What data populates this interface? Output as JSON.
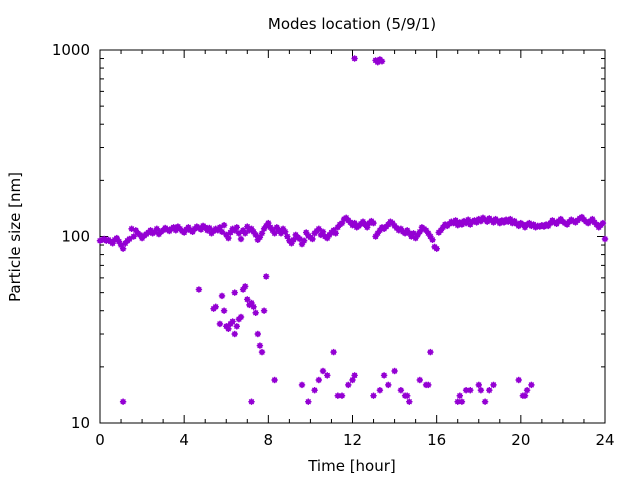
{
  "chart_data": {
    "type": "scatter",
    "title": "Modes location (5/9/1)",
    "xlabel": "Time [hour]",
    "ylabel": "Particle size [nm]",
    "xlim": [
      0,
      24
    ],
    "ylim": [
      10,
      1000
    ],
    "yscale": "log",
    "x_ticks": [
      0,
      4,
      8,
      12,
      16,
      20,
      24
    ],
    "x_tick_labels": [
      "0",
      "4",
      "8",
      "12",
      "16",
      "20",
      "24"
    ],
    "y_ticks": [
      10,
      100,
      1000
    ],
    "y_tick_labels": [
      "10",
      "100",
      "1000"
    ],
    "grid": false,
    "marker_color": "#9400d3",
    "series": [
      {
        "points": [
          [
            0.0,
            95
          ],
          [
            0.1,
            96
          ],
          [
            0.2,
            97
          ],
          [
            0.3,
            95
          ],
          [
            0.4,
            96
          ],
          [
            0.5,
            94
          ],
          [
            0.6,
            92
          ],
          [
            0.7,
            96
          ],
          [
            0.8,
            98
          ],
          [
            0.9,
            94
          ],
          [
            1.0,
            90
          ],
          [
            1.1,
            86
          ],
          [
            1.2,
            92
          ],
          [
            1.3,
            95
          ],
          [
            1.4,
            97
          ],
          [
            1.5,
            110
          ],
          [
            1.6,
            100
          ],
          [
            1.7,
            108
          ],
          [
            1.8,
            104
          ],
          [
            1.9,
            102
          ],
          [
            2.0,
            98
          ],
          [
            2.1,
            101
          ],
          [
            2.2,
            103
          ],
          [
            2.3,
            105
          ],
          [
            2.4,
            108
          ],
          [
            2.5,
            104
          ],
          [
            2.6,
            106
          ],
          [
            2.7,
            110
          ],
          [
            2.8,
            103
          ],
          [
            2.9,
            106
          ],
          [
            3.0,
            108
          ],
          [
            3.1,
            111
          ],
          [
            3.2,
            109
          ],
          [
            3.3,
            107
          ],
          [
            3.4,
            110
          ],
          [
            3.5,
            112
          ],
          [
            3.6,
            108
          ],
          [
            3.7,
            113
          ],
          [
            3.8,
            110
          ],
          [
            3.9,
            107
          ],
          [
            4.0,
            105
          ],
          [
            4.1,
            109
          ],
          [
            4.2,
            112
          ],
          [
            4.3,
            108
          ],
          [
            4.4,
            106
          ],
          [
            4.5,
            110
          ],
          [
            4.6,
            113
          ],
          [
            4.7,
            111
          ],
          [
            4.8,
            109
          ],
          [
            4.9,
            114
          ],
          [
            5.0,
            112
          ],
          [
            5.1,
            108
          ],
          [
            5.2,
            111
          ],
          [
            5.3,
            104
          ],
          [
            5.4,
            107
          ],
          [
            5.5,
            110
          ],
          [
            5.6,
            108
          ],
          [
            5.7,
            112
          ],
          [
            5.8,
            106
          ],
          [
            5.9,
            115
          ],
          [
            6.0,
            102
          ],
          [
            6.1,
            98
          ],
          [
            6.2,
            105
          ],
          [
            6.3,
            110
          ],
          [
            6.4,
            108
          ],
          [
            6.5,
            112
          ],
          [
            6.6,
            104
          ],
          [
            6.7,
            97
          ],
          [
            6.8,
            108
          ],
          [
            6.9,
            104
          ],
          [
            7.0,
            113
          ],
          [
            7.1,
            108
          ],
          [
            7.2,
            110
          ],
          [
            7.3,
            106
          ],
          [
            7.4,
            102
          ],
          [
            7.5,
            96
          ],
          [
            7.6,
            99
          ],
          [
            7.7,
            104
          ],
          [
            7.8,
            110
          ],
          [
            7.9,
            114
          ],
          [
            8.0,
            118
          ],
          [
            8.1,
            112
          ],
          [
            8.2,
            108
          ],
          [
            8.3,
            104
          ],
          [
            8.4,
            112
          ],
          [
            8.5,
            108
          ],
          [
            8.6,
            104
          ],
          [
            8.7,
            110
          ],
          [
            8.8,
            106
          ],
          [
            8.9,
            100
          ],
          [
            9.0,
            95
          ],
          [
            9.1,
            92
          ],
          [
            9.2,
            96
          ],
          [
            9.3,
            102
          ],
          [
            9.4,
            99
          ],
          [
            9.5,
            97
          ],
          [
            9.6,
            91
          ],
          [
            9.7,
            95
          ],
          [
            9.8,
            105
          ],
          [
            9.9,
            101
          ],
          [
            10.0,
            99
          ],
          [
            10.1,
            97
          ],
          [
            10.2,
            104
          ],
          [
            10.3,
            107
          ],
          [
            10.4,
            110
          ],
          [
            10.5,
            102
          ],
          [
            10.6,
            106
          ],
          [
            10.7,
            100
          ],
          [
            10.8,
            98
          ],
          [
            10.9,
            102
          ],
          [
            11.0,
            105
          ],
          [
            11.1,
            108
          ],
          [
            11.2,
            104
          ],
          [
            11.3,
            112
          ],
          [
            11.4,
            116
          ],
          [
            11.5,
            118
          ],
          [
            11.6,
            124
          ],
          [
            11.7,
            126
          ],
          [
            11.8,
            122
          ],
          [
            11.9,
            119
          ],
          [
            12.0,
            115
          ],
          [
            12.1,
            118
          ],
          [
            12.2,
            112
          ],
          [
            12.3,
            114
          ],
          [
            12.4,
            117
          ],
          [
            12.5,
            120
          ],
          [
            12.6,
            116
          ],
          [
            12.7,
            112
          ],
          [
            12.8,
            118
          ],
          [
            12.9,
            121
          ],
          [
            13.0,
            118
          ],
          [
            13.1,
            100
          ],
          [
            13.2,
            104
          ],
          [
            13.3,
            108
          ],
          [
            13.4,
            112
          ],
          [
            13.5,
            110
          ],
          [
            13.6,
            113
          ],
          [
            13.7,
            116
          ],
          [
            13.8,
            120
          ],
          [
            13.9,
            118
          ],
          [
            14.0,
            114
          ],
          [
            14.1,
            111
          ],
          [
            14.2,
            108
          ],
          [
            14.3,
            110
          ],
          [
            14.4,
            106
          ],
          [
            14.5,
            104
          ],
          [
            14.6,
            108
          ],
          [
            14.7,
            104
          ],
          [
            14.8,
            100
          ],
          [
            14.9,
            104
          ],
          [
            15.0,
            98
          ],
          [
            15.1,
            102
          ],
          [
            15.2,
            106
          ],
          [
            15.3,
            112
          ],
          [
            15.4,
            110
          ],
          [
            15.5,
            108
          ],
          [
            15.6,
            104
          ],
          [
            15.7,
            100
          ],
          [
            15.8,
            96
          ],
          [
            15.9,
            88
          ],
          [
            16.0,
            86
          ],
          [
            16.1,
            105
          ],
          [
            16.2,
            108
          ],
          [
            16.3,
            112
          ],
          [
            16.4,
            116
          ],
          [
            16.5,
            114
          ],
          [
            16.6,
            117
          ],
          [
            16.7,
            120
          ],
          [
            16.8,
            118
          ],
          [
            16.9,
            122
          ],
          [
            17.0,
            115
          ],
          [
            17.1,
            119
          ],
          [
            17.2,
            116
          ],
          [
            17.3,
            121
          ],
          [
            17.4,
            118
          ],
          [
            17.5,
            123
          ],
          [
            17.6,
            116
          ],
          [
            17.7,
            120
          ],
          [
            17.8,
            122
          ],
          [
            17.9,
            119
          ],
          [
            18.0,
            124
          ],
          [
            18.1,
            121
          ],
          [
            18.2,
            126
          ],
          [
            18.3,
            123
          ],
          [
            18.4,
            120
          ],
          [
            18.5,
            125
          ],
          [
            18.6,
            122
          ],
          [
            18.7,
            119
          ],
          [
            18.8,
            124
          ],
          [
            18.9,
            121
          ],
          [
            19.0,
            118
          ],
          [
            19.1,
            122
          ],
          [
            19.2,
            119
          ],
          [
            19.3,
            123
          ],
          [
            19.4,
            120
          ],
          [
            19.5,
            124
          ],
          [
            19.6,
            118
          ],
          [
            19.7,
            121
          ],
          [
            19.8,
            117
          ],
          [
            19.9,
            114
          ],
          [
            20.0,
            118
          ],
          [
            20.1,
            116
          ],
          [
            20.2,
            112
          ],
          [
            20.3,
            116
          ],
          [
            20.4,
            118
          ],
          [
            20.5,
            114
          ],
          [
            20.6,
            116
          ],
          [
            20.7,
            112
          ],
          [
            20.8,
            114
          ],
          [
            20.9,
            113
          ],
          [
            21.0,
            115
          ],
          [
            21.1,
            113
          ],
          [
            21.2,
            116
          ],
          [
            21.3,
            114
          ],
          [
            21.4,
            118
          ],
          [
            21.5,
            122
          ],
          [
            21.6,
            119
          ],
          [
            21.7,
            117
          ],
          [
            21.8,
            121
          ],
          [
            21.9,
            124
          ],
          [
            22.0,
            120
          ],
          [
            22.1,
            118
          ],
          [
            22.2,
            116
          ],
          [
            22.3,
            120
          ],
          [
            22.4,
            123
          ],
          [
            22.5,
            121
          ],
          [
            22.6,
            119
          ],
          [
            22.7,
            122
          ],
          [
            22.8,
            125
          ],
          [
            22.9,
            127
          ],
          [
            23.0,
            123
          ],
          [
            23.1,
            120
          ],
          [
            23.2,
            118
          ],
          [
            23.3,
            121
          ],
          [
            23.4,
            124
          ],
          [
            23.5,
            119
          ],
          [
            23.6,
            116
          ],
          [
            23.7,
            112
          ],
          [
            23.8,
            115
          ],
          [
            23.9,
            118
          ],
          [
            24.0,
            97
          ],
          [
            12.1,
            900
          ],
          [
            13.1,
            880
          ],
          [
            13.2,
            860
          ],
          [
            13.3,
            890
          ],
          [
            13.4,
            870
          ],
          [
            4.7,
            52
          ],
          [
            5.4,
            41
          ],
          [
            5.5,
            42
          ],
          [
            5.7,
            34
          ],
          [
            5.8,
            48
          ],
          [
            5.9,
            40
          ],
          [
            6.0,
            33
          ],
          [
            6.1,
            32
          ],
          [
            6.2,
            34
          ],
          [
            6.3,
            35
          ],
          [
            6.4,
            30
          ],
          [
            6.5,
            33
          ],
          [
            6.6,
            36
          ],
          [
            6.7,
            37
          ],
          [
            6.8,
            52
          ],
          [
            6.9,
            54
          ],
          [
            6.4,
            50
          ],
          [
            7.0,
            46
          ],
          [
            7.1,
            43
          ],
          [
            7.2,
            44
          ],
          [
            7.3,
            42
          ],
          [
            7.4,
            39
          ],
          [
            7.5,
            30
          ],
          [
            7.6,
            26
          ],
          [
            7.7,
            24
          ],
          [
            7.8,
            40
          ],
          [
            7.9,
            61
          ],
          [
            7.2,
            13
          ],
          [
            1.1,
            13
          ],
          [
            8.3,
            17
          ],
          [
            9.6,
            16
          ],
          [
            9.9,
            13
          ],
          [
            10.2,
            15
          ],
          [
            10.4,
            17
          ],
          [
            10.6,
            19
          ],
          [
            10.8,
            18
          ],
          [
            11.1,
            24
          ],
          [
            11.3,
            14
          ],
          [
            11.5,
            14
          ],
          [
            11.8,
            16
          ],
          [
            12.0,
            17
          ],
          [
            12.1,
            18
          ],
          [
            13.0,
            14
          ],
          [
            13.3,
            15
          ],
          [
            13.5,
            18
          ],
          [
            13.7,
            16
          ],
          [
            14.0,
            19
          ],
          [
            14.3,
            15
          ],
          [
            14.5,
            14
          ],
          [
            14.6,
            14
          ],
          [
            14.7,
            13
          ],
          [
            15.2,
            17
          ],
          [
            15.5,
            16
          ],
          [
            15.6,
            16
          ],
          [
            15.7,
            24
          ],
          [
            17.0,
            13
          ],
          [
            17.1,
            14
          ],
          [
            17.2,
            13
          ],
          [
            17.4,
            15
          ],
          [
            17.6,
            15
          ],
          [
            18.0,
            16
          ],
          [
            18.1,
            15
          ],
          [
            18.3,
            13
          ],
          [
            18.5,
            15
          ],
          [
            18.7,
            16
          ],
          [
            19.9,
            17
          ],
          [
            20.1,
            14
          ],
          [
            20.2,
            14
          ],
          [
            20.3,
            15
          ],
          [
            20.5,
            16
          ]
        ]
      }
    ]
  }
}
